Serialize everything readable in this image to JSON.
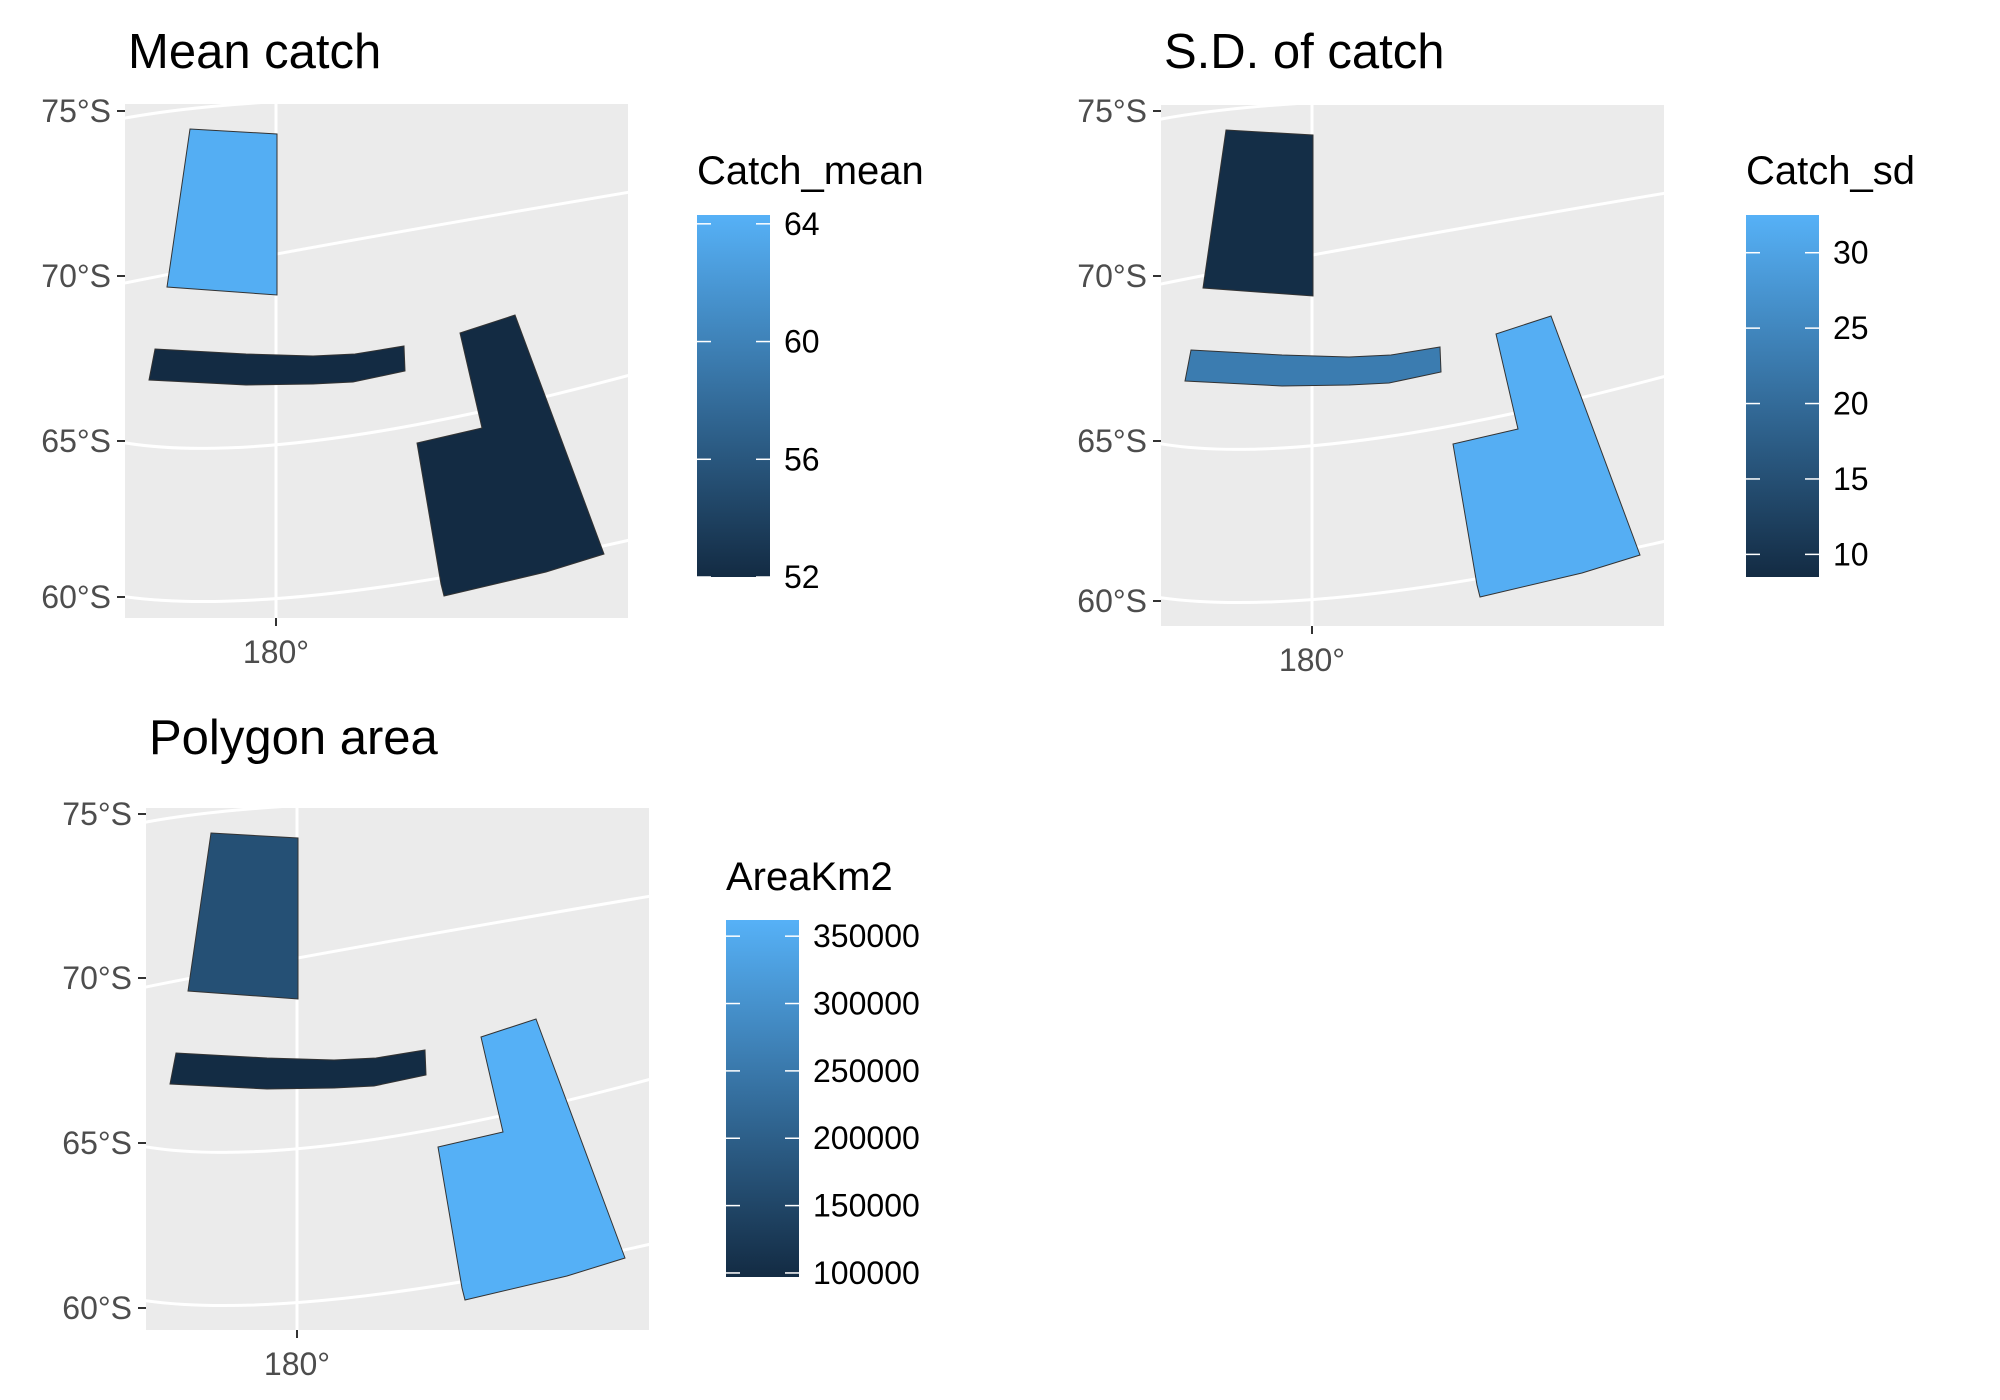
{
  "panels": [
    {
      "title": "Mean catch",
      "lat_labels": [
        "75°S",
        "70°S",
        "65°S",
        "60°S"
      ],
      "lon_label": "180°",
      "legend": {
        "title": "Catch_mean",
        "ticks": [
          "64",
          "60",
          "56",
          "52"
        ],
        "tick_values": [
          64,
          60,
          56,
          52
        ],
        "range": [
          52,
          64.3
        ]
      }
    },
    {
      "title": "S.D. of catch",
      "lat_labels": [
        "75°S",
        "70°S",
        "65°S",
        "60°S"
      ],
      "lon_label": "180°",
      "legend": {
        "title": "Catch_sd",
        "ticks": [
          "30",
          "25",
          "20",
          "15",
          "10"
        ],
        "tick_values": [
          30,
          25,
          20,
          15,
          10
        ],
        "range": [
          8.5,
          32.5
        ]
      }
    },
    {
      "title": "Polygon area",
      "lat_labels": [
        "75°S",
        "70°S",
        "65°S",
        "60°S"
      ],
      "lon_label": "180°",
      "legend": {
        "title": "AreaKm2",
        "ticks": [
          "350000",
          "300000",
          "250000",
          "200000",
          "150000",
          "100000"
        ],
        "tick_values": [
          350000,
          300000,
          250000,
          200000,
          150000,
          100000
        ],
        "range": [
          97000,
          362000
        ]
      }
    }
  ],
  "chart_data": [
    {
      "type": "map",
      "title": "Mean catch",
      "fill_variable": "Catch_mean",
      "regions": [
        {
          "name": "",
          "value": 64
        },
        {
          "name": "",
          "value": 52
        },
        {
          "name": "",
          "value": 52
        }
      ],
      "lat_range": [
        "60°S",
        "75°S"
      ],
      "lon_center": "180°"
    },
    {
      "type": "map",
      "title": "S.D. of catch",
      "fill_variable": "Catch_sd",
      "regions": [
        {
          "name": "",
          "value": 9
        },
        {
          "name": "",
          "value": 23
        },
        {
          "name": "",
          "value": 32
        }
      ],
      "lat_range": [
        "60°S",
        "75°S"
      ],
      "lon_center": "180°"
    },
    {
      "type": "map",
      "title": "Polygon area",
      "fill_variable": "AreaKm2",
      "regions": [
        {
          "name": "",
          "value": 170000
        },
        {
          "name": "",
          "value": 98000
        },
        {
          "name": "",
          "value": 360000
        }
      ],
      "lat_range": [
        "60°S",
        "75°S"
      ],
      "lon_center": "180°"
    }
  ],
  "colors": {
    "panel_background": "#ebebeb",
    "graticule": "#ffffff",
    "axis_text": "#4d4d4d",
    "gradient_low": "#132b43",
    "gradient_high": "#56b1f7",
    "polygon_outline": "#333333"
  }
}
